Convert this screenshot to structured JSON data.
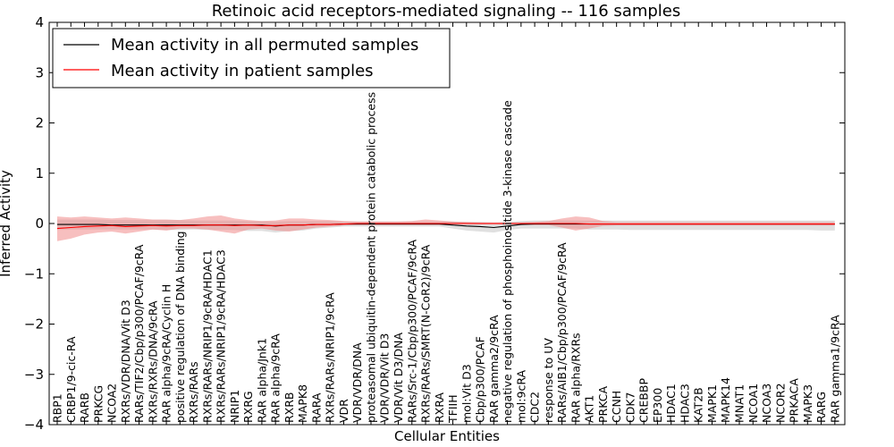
{
  "chart_data": {
    "type": "line",
    "title": "Retinoic acid receptors-mediated signaling -- 116 samples",
    "xlabel": "Cellular Entities",
    "ylabel": "Inferred Activity",
    "ylim": [
      -4,
      4
    ],
    "yticks": [
      -4,
      -3,
      -2,
      -1,
      0,
      1,
      2,
      3,
      4
    ],
    "ytick_labels": [
      "−4",
      "−3",
      "−2",
      "−1",
      "0",
      "1",
      "2",
      "3",
      "4"
    ],
    "legend_position": "upper-left",
    "categories": [
      "RBP1",
      "CRBP1/9-cic-RA",
      "RARB",
      "PRKCG",
      "NCOA2",
      "RXRs/VDR/DNA/Vit D3",
      "RARs/TIF2/Cbp/p300/PCAF/9cRA",
      "RXRs/RXRs/DNA/9cRA",
      "RAR alpha/9cRA/Cyclin H",
      "positive regulation of DNA binding",
      "RXRs/RARs",
      "RXRs/RARs/NRIP1/9cRA/HDAC1",
      "RXRs/RARs/NRIP1/9cRA/HDAC3",
      "NRIP1",
      "RXRG",
      "RAR alpha/Jnk1",
      "RAR alpha/9cRA",
      "RXRB",
      "MAPK8",
      "RARA",
      "RXRs/RARs/NRIP1/9cRA",
      "VDR",
      "VDR/VDR/DNA",
      "proteasomal ubiquitin-dependent protein catabolic process",
      "VDR/VDR/Vit D3",
      "VDR/Vit D3/DNA",
      "RARs/Src-1/Cbp/p300/PCAF/9cRA",
      "RXRs/RARs/SMRT(N-CoR2)/9cRA",
      "RXRA",
      "TFIIH",
      "mol:Vit D3",
      "Cbp/p300/PCAF",
      "RAR gamma2/9cRA",
      "negative regulation of phosphoinositide 3-kinase cascade",
      "mol:9cRA",
      "CDC2",
      "response to UV",
      "RARs/AIB1/Cbp/p300/PCAF/9cRA",
      "RAR alpha/RXRs",
      "AKT1",
      "PRKCA",
      "CCNH",
      "CDK7",
      "CREBBP",
      "EP300",
      "HDAC1",
      "HDAC3",
      "KAT2B",
      "MAPK1",
      "MAPK14",
      "MNAT1",
      "NCOA1",
      "NCOA3",
      "NCOR2",
      "PRKACA",
      "MAPK3",
      "RARG",
      "RAR gamma1/9cRA"
    ],
    "series": [
      {
        "name": "Mean activity in all permuted samples",
        "color": "#000000",
        "band_color": "#bbbbbb",
        "values": [
          -0.02,
          -0.02,
          -0.02,
          -0.02,
          -0.03,
          -0.03,
          -0.03,
          -0.03,
          -0.03,
          -0.03,
          -0.03,
          -0.03,
          -0.03,
          -0.03,
          -0.03,
          -0.03,
          -0.05,
          -0.03,
          -0.03,
          -0.02,
          -0.02,
          -0.01,
          -0.01,
          -0.01,
          -0.01,
          -0.01,
          -0.01,
          -0.01,
          -0.01,
          -0.03,
          -0.05,
          -0.06,
          -0.08,
          -0.05,
          -0.02,
          -0.01,
          -0.01,
          -0.01,
          -0.01,
          -0.01,
          -0.01,
          -0.01,
          -0.01,
          -0.01,
          -0.01,
          -0.01,
          -0.01,
          -0.01,
          -0.01,
          -0.01,
          -0.01,
          -0.01,
          -0.01,
          -0.01,
          -0.01,
          -0.01,
          -0.01,
          -0.01
        ],
        "lower": [
          -0.12,
          -0.12,
          -0.12,
          -0.12,
          -0.12,
          -0.12,
          -0.12,
          -0.12,
          -0.13,
          -0.13,
          -0.12,
          -0.13,
          -0.13,
          -0.13,
          -0.15,
          -0.15,
          -0.18,
          -0.15,
          -0.14,
          -0.1,
          -0.08,
          -0.06,
          -0.06,
          -0.06,
          -0.06,
          -0.06,
          -0.06,
          -0.06,
          -0.06,
          -0.1,
          -0.14,
          -0.16,
          -0.18,
          -0.13,
          -0.1,
          -0.1,
          -0.1,
          -0.1,
          -0.1,
          -0.12,
          -0.12,
          -0.12,
          -0.13,
          -0.13,
          -0.13,
          -0.13,
          -0.13,
          -0.13,
          -0.13,
          -0.13,
          -0.13,
          -0.13,
          -0.13,
          -0.13,
          -0.13,
          -0.13,
          -0.14,
          -0.14
        ],
        "upper": [
          0.08,
          0.08,
          0.08,
          0.08,
          0.07,
          0.07,
          0.07,
          0.07,
          0.07,
          0.07,
          0.06,
          0.06,
          0.06,
          0.06,
          0.05,
          0.05,
          0.04,
          0.05,
          0.05,
          0.05,
          0.05,
          0.04,
          0.04,
          0.04,
          0.04,
          0.04,
          0.04,
          0.04,
          0.04,
          0.04,
          0.03,
          0.03,
          0.02,
          0.03,
          0.05,
          0.06,
          0.06,
          0.06,
          0.06,
          0.06,
          0.06,
          0.06,
          0.06,
          0.06,
          0.06,
          0.06,
          0.06,
          0.06,
          0.06,
          0.06,
          0.06,
          0.06,
          0.06,
          0.06,
          0.06,
          0.06,
          0.06,
          0.06
        ]
      },
      {
        "name": "Mean activity in patient samples",
        "color": "#ff0000",
        "band_color": "#f08080",
        "values": [
          -0.1,
          -0.08,
          -0.06,
          -0.05,
          -0.04,
          -0.06,
          -0.05,
          -0.04,
          -0.05,
          -0.04,
          -0.04,
          -0.03,
          -0.03,
          -0.04,
          -0.03,
          -0.04,
          -0.04,
          -0.03,
          -0.03,
          -0.02,
          -0.02,
          -0.01,
          0.0,
          0.0,
          0.0,
          0.0,
          0.0,
          0.0,
          0.0,
          0.0,
          0.0,
          0.0,
          0.0,
          0.0,
          0.0,
          0.0,
          0.0,
          0.0,
          0.0,
          -0.01,
          -0.01,
          -0.01,
          -0.01,
          -0.01,
          -0.01,
          -0.01,
          -0.01,
          -0.01,
          -0.01,
          -0.01,
          -0.01,
          -0.01,
          -0.01,
          -0.01,
          -0.01,
          -0.01,
          -0.01,
          -0.01
        ],
        "lower": [
          -0.35,
          -0.3,
          -0.22,
          -0.18,
          -0.16,
          -0.2,
          -0.16,
          -0.12,
          -0.14,
          -0.1,
          -0.1,
          -0.12,
          -0.16,
          -0.2,
          -0.12,
          -0.1,
          -0.14,
          -0.16,
          -0.12,
          -0.08,
          -0.06,
          -0.04,
          -0.03,
          -0.03,
          -0.03,
          -0.03,
          -0.03,
          -0.03,
          -0.03,
          -0.02,
          -0.02,
          -0.02,
          -0.02,
          -0.02,
          -0.02,
          -0.03,
          -0.03,
          -0.08,
          -0.14,
          -0.1,
          -0.05,
          -0.04,
          -0.04,
          -0.04,
          -0.04,
          -0.04,
          -0.04,
          -0.04,
          -0.04,
          -0.04,
          -0.04,
          -0.04,
          -0.04,
          -0.04,
          -0.04,
          -0.04,
          -0.04,
          -0.04
        ],
        "upper": [
          0.14,
          0.12,
          0.14,
          0.12,
          0.1,
          0.12,
          0.1,
          0.08,
          0.08,
          0.07,
          0.1,
          0.14,
          0.16,
          0.1,
          0.07,
          0.05,
          0.06,
          0.1,
          0.1,
          0.08,
          0.07,
          0.05,
          0.04,
          0.04,
          0.04,
          0.04,
          0.05,
          0.08,
          0.06,
          0.04,
          0.03,
          0.02,
          0.02,
          0.02,
          0.02,
          0.03,
          0.05,
          0.1,
          0.14,
          0.12,
          0.05,
          0.03,
          0.03,
          0.03,
          0.03,
          0.03,
          0.03,
          0.03,
          0.03,
          0.03,
          0.03,
          0.03,
          0.03,
          0.03,
          0.03,
          0.03,
          0.03,
          0.03
        ]
      }
    ]
  }
}
